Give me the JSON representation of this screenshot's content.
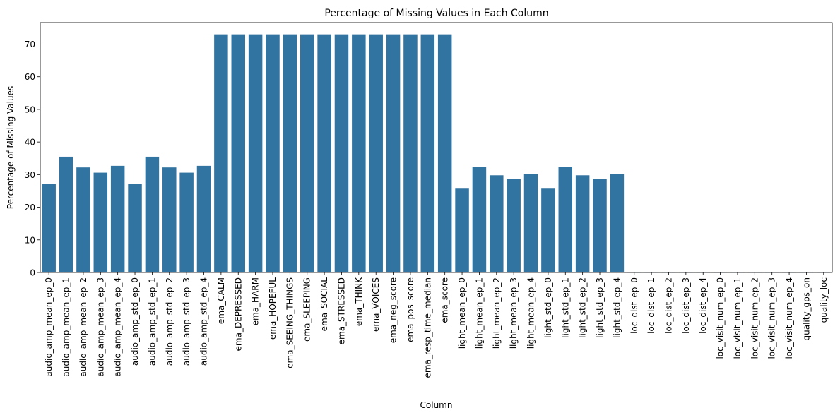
{
  "chart_data": {
    "type": "bar",
    "title": "Percentage of Missing Values in Each Column",
    "xlabel": "Column",
    "ylabel": "Percentage of Missing Values",
    "ylim": [
      0,
      76.6
    ],
    "yticks": [
      0,
      10,
      20,
      30,
      40,
      50,
      60,
      70
    ],
    "grid": false,
    "bar_color": "#3274a1",
    "categories": [
      "audio_amp_mean_ep_0",
      "audio_amp_mean_ep_1",
      "audio_amp_mean_ep_2",
      "audio_amp_mean_ep_3",
      "audio_amp_mean_ep_4",
      "audio_amp_std_ep_0",
      "audio_amp_std_ep_1",
      "audio_amp_std_ep_2",
      "audio_amp_std_ep_3",
      "audio_amp_std_ep_4",
      "ema_CALM",
      "ema_DEPRESSED",
      "ema_HARM",
      "ema_HOPEFUL",
      "ema_SEEING_THINGS",
      "ema_SLEEPING",
      "ema_SOCIAL",
      "ema_STRESSED",
      "ema_THINK",
      "ema_VOICES",
      "ema_neg_score",
      "ema_pos_score",
      "ema_resp_time_median",
      "ema_score",
      "light_mean_ep_0",
      "light_mean_ep_1",
      "light_mean_ep_2",
      "light_mean_ep_3",
      "light_mean_ep_4",
      "light_std_ep_0",
      "light_std_ep_1",
      "light_std_ep_2",
      "light_std_ep_3",
      "light_std_ep_4",
      "loc_dist_ep_0",
      "loc_dist_ep_1",
      "loc_dist_ep_2",
      "loc_dist_ep_3",
      "loc_dist_ep_4",
      "loc_visit_num_ep_0",
      "loc_visit_num_ep_1",
      "loc_visit_num_ep_2",
      "loc_visit_num_ep_3",
      "loc_visit_num_ep_4",
      "quality_gps_on",
      "quality_loc"
    ],
    "values": [
      27.2,
      35.5,
      32.2,
      30.6,
      32.7,
      27.2,
      35.5,
      32.2,
      30.6,
      32.7,
      73.0,
      73.0,
      73.0,
      73.0,
      73.0,
      73.0,
      73.0,
      73.0,
      73.0,
      73.0,
      73.0,
      73.0,
      73.0,
      73.0,
      25.7,
      32.4,
      29.8,
      28.6,
      30.1,
      25.7,
      32.4,
      29.8,
      28.6,
      30.1,
      0.1,
      0.1,
      0.1,
      0.1,
      0.1,
      0.1,
      0.1,
      0.1,
      0.1,
      0.1,
      0.1,
      0.1
    ]
  }
}
